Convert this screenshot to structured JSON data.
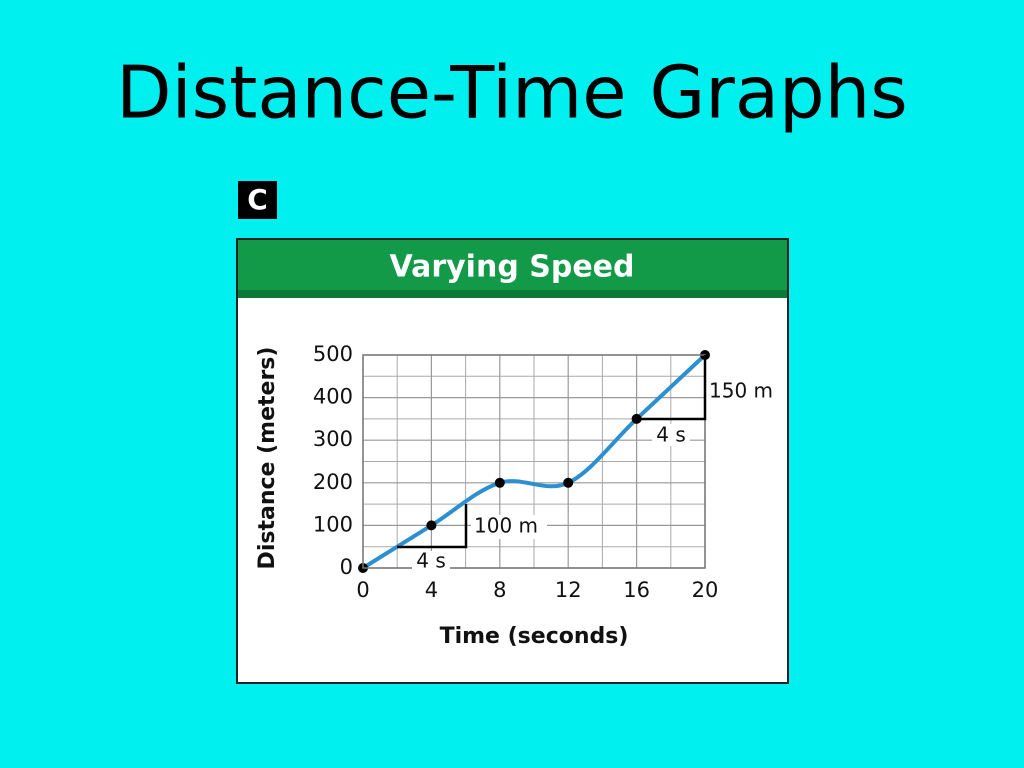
{
  "slide_title": "Distance-Time Graphs",
  "chart_data": {
    "type": "line",
    "panel_label": "C",
    "title": "Varying Speed",
    "x_label": "Time (seconds)",
    "y_label": "Distance (meters)",
    "x": [
      0,
      4,
      8,
      12,
      16,
      20
    ],
    "series": [
      {
        "color": "#2b8fd0",
        "values": [
          0,
          100,
          200,
          200,
          350,
          500
        ]
      }
    ],
    "xlim": [
      0,
      20
    ],
    "ylim": [
      0,
      500
    ],
    "xticks": [
      0,
      4,
      8,
      12,
      16,
      20
    ],
    "yticks": [
      0,
      100,
      200,
      300,
      400,
      500
    ],
    "grid": true,
    "annotations": [
      "4 s",
      "100 m",
      "4 s",
      "150 m"
    ]
  }
}
